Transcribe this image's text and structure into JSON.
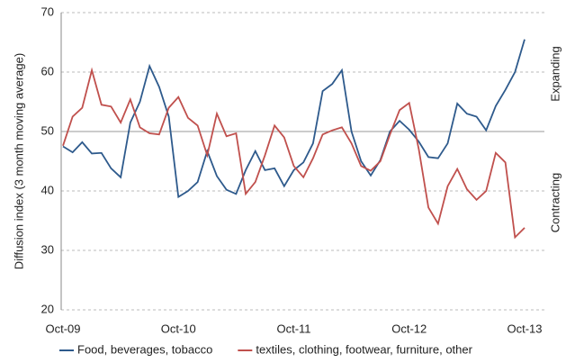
{
  "chart_data": {
    "type": "line",
    "y_label": "Diffusion index (3 month moving average)",
    "annotations": [
      "Expanding",
      "Contracting"
    ],
    "categories": [
      "Oct-09",
      null,
      null,
      null,
      null,
      null,
      null,
      null,
      null,
      null,
      null,
      null,
      "Oct-10",
      null,
      null,
      null,
      null,
      null,
      null,
      null,
      null,
      null,
      null,
      null,
      "Oct-11",
      null,
      null,
      null,
      null,
      null,
      null,
      null,
      null,
      null,
      null,
      null,
      "Oct-12",
      null,
      null,
      null,
      null,
      null,
      null,
      null,
      null,
      null,
      null,
      null,
      "Oct-13"
    ],
    "series": [
      {
        "name": "Food, beverages, tobacco",
        "color": "#2e5a8c",
        "values": [
          47.5,
          46.5,
          48.2,
          46.3,
          46.4,
          43.8,
          42.3,
          51.5,
          55,
          61,
          57.5,
          52.5,
          39,
          40,
          41.5,
          46.7,
          42.5,
          40.2,
          39.5,
          43.5,
          46.7,
          43.5,
          43.8,
          40.8,
          43.5,
          44.8,
          48,
          56.8,
          58,
          60.3,
          50,
          45,
          42.6,
          45.2,
          50,
          51.8,
          50.3,
          48.3,
          45.7,
          45.5,
          48,
          54.7,
          53,
          52.5,
          50.2,
          54.3,
          57,
          60,
          65.5
        ]
      },
      {
        "name": "textiles, clothing, footwear, furniture, other",
        "color": "#c0504d",
        "values": [
          47.6,
          52.5,
          54,
          60.3,
          54.5,
          54.2,
          51.5,
          55.4,
          50.7,
          49.7,
          49.5,
          54,
          55.8,
          52.3,
          51,
          46,
          53,
          49.2,
          49.7,
          39.5,
          41.5,
          46,
          51,
          49,
          44.2,
          42.3,
          45.5,
          49.5,
          50.2,
          50.7,
          48,
          44.2,
          43.4,
          45,
          49.5,
          53.6,
          54.8,
          47,
          37.2,
          34.5,
          40.8,
          43.7,
          40.3,
          38.5,
          40,
          46.4,
          44.8,
          32.2,
          33.8
        ]
      }
    ],
    "ylim": [
      20,
      70
    ],
    "yticks": [
      20,
      30,
      40,
      50,
      60,
      70
    ],
    "grid": true,
    "reference_line": 50,
    "legend": "bottom"
  }
}
